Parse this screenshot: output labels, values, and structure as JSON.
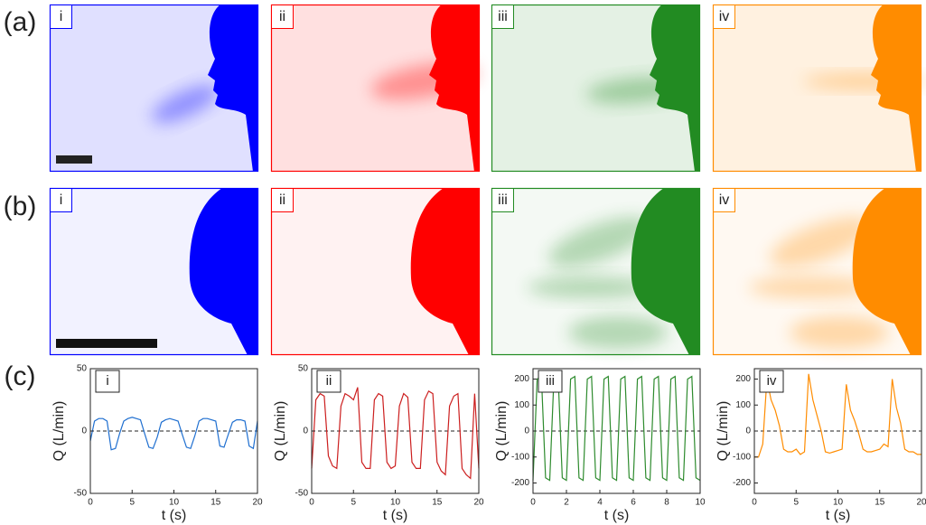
{
  "panel_labels": [
    "(a)",
    "(b)",
    "(c)"
  ],
  "row_a": [
    "i",
    "ii",
    "iii",
    "iv"
  ],
  "row_b": [
    "i",
    "ii",
    "iii",
    "iv"
  ],
  "chart_data": [
    {
      "type": "line",
      "label": "i",
      "color": "#1f6fd0",
      "xlabel": "t (s)",
      "ylabel": "Q (L/min)",
      "xlim": [
        0,
        20
      ],
      "ylim": [
        -50,
        50
      ],
      "xticks": [
        0,
        5,
        10,
        15,
        20
      ],
      "yticks": [
        -50,
        0,
        50
      ],
      "x": [
        0,
        0.5,
        1,
        1.5,
        2,
        2.5,
        3,
        3.5,
        4,
        4.5,
        5,
        5.5,
        6,
        6.5,
        7,
        7.5,
        8,
        8.5,
        9,
        9.5,
        10,
        10.5,
        11,
        11.5,
        12,
        12.5,
        13,
        13.5,
        14,
        14.5,
        15,
        15.5,
        16,
        16.5,
        17,
        17.5,
        18,
        18.5,
        19,
        19.5,
        20
      ],
      "values": [
        -8,
        8,
        10,
        10,
        8,
        -15,
        -14,
        -2,
        8,
        10,
        11,
        10,
        9,
        -2,
        -13,
        -14,
        -5,
        7,
        9,
        10,
        9,
        8,
        -3,
        -13,
        -14,
        -4,
        8,
        10,
        10,
        9,
        8,
        -12,
        -13,
        -3,
        7,
        9,
        9,
        8,
        -12,
        -14,
        8
      ]
    },
    {
      "type": "line",
      "label": "ii",
      "color": "#cc1f1f",
      "xlabel": "t (s)",
      "ylabel": "Q (L/min)",
      "xlim": [
        0,
        20
      ],
      "ylim": [
        -50,
        50
      ],
      "xticks": [
        0,
        5,
        10,
        15,
        20
      ],
      "yticks": [
        -50,
        0,
        50
      ],
      "x": [
        0,
        0.5,
        1,
        1.5,
        2,
        2.5,
        3,
        3.5,
        4,
        4.5,
        5,
        5.5,
        6,
        6.5,
        7,
        7.5,
        8,
        8.5,
        9,
        9.5,
        10,
        10.5,
        11,
        11.5,
        12,
        12.5,
        13,
        13.5,
        14,
        14.5,
        15,
        15.5,
        16,
        16.5,
        17,
        17.5,
        18,
        18.5,
        19,
        19.5,
        20
      ],
      "values": [
        -30,
        25,
        30,
        28,
        -20,
        -28,
        -30,
        20,
        30,
        28,
        25,
        35,
        -25,
        -30,
        -30,
        25,
        30,
        28,
        -25,
        -30,
        -28,
        20,
        30,
        27,
        -25,
        -30,
        -30,
        25,
        32,
        30,
        -25,
        -32,
        -35,
        20,
        28,
        30,
        -30,
        -35,
        -38,
        30,
        -30
      ]
    },
    {
      "type": "line",
      "label": "iii",
      "color": "#2e8b2e",
      "xlabel": "t (s)",
      "ylabel": "Q (L/min)",
      "xlim": [
        0,
        10
      ],
      "ylim": [
        -240,
        240
      ],
      "xticks": [
        0,
        2,
        4,
        6,
        8,
        10
      ],
      "yticks": [
        -200,
        -100,
        0,
        100,
        200
      ],
      "x": [
        0,
        0.25,
        0.5,
        0.75,
        1,
        1.25,
        1.5,
        1.75,
        2,
        2.25,
        2.5,
        2.75,
        3,
        3.25,
        3.5,
        3.75,
        4,
        4.25,
        4.5,
        4.75,
        5,
        5.25,
        5.5,
        5.75,
        6,
        6.25,
        6.5,
        6.75,
        7,
        7.25,
        7.5,
        7.75,
        8,
        8.25,
        8.5,
        8.75,
        9,
        9.25,
        9.5,
        9.75,
        10
      ],
      "values": [
        -190,
        200,
        210,
        -180,
        -190,
        200,
        210,
        -180,
        -190,
        200,
        210,
        -180,
        -190,
        200,
        210,
        -180,
        -190,
        200,
        210,
        -180,
        -190,
        200,
        210,
        -180,
        -190,
        200,
        210,
        -180,
        -190,
        200,
        210,
        -180,
        -190,
        200,
        210,
        -180,
        -190,
        200,
        210,
        -180,
        -190
      ]
    },
    {
      "type": "line",
      "label": "iv",
      "color": "#ff8c00",
      "xlabel": "t (s)",
      "ylabel": "Q (L/min)",
      "xlim": [
        0,
        20
      ],
      "ylim": [
        -240,
        240
      ],
      "xticks": [
        0,
        5,
        10,
        15,
        20
      ],
      "yticks": [
        -200,
        -100,
        0,
        100,
        200
      ],
      "x": [
        0,
        0.5,
        1,
        1.5,
        2,
        2.5,
        3,
        3.5,
        4,
        4.5,
        5,
        5.5,
        6,
        6.5,
        7,
        7.5,
        8,
        8.5,
        9,
        9.5,
        10,
        10.5,
        11,
        11.5,
        12,
        12.5,
        13,
        13.5,
        14,
        14.5,
        15,
        15.5,
        16,
        16.5,
        17,
        17.5,
        18,
        18.5,
        19,
        19.5,
        20
      ],
      "values": [
        -100,
        -100,
        -50,
        200,
        120,
        80,
        20,
        -70,
        -80,
        -80,
        -70,
        -90,
        -80,
        220,
        120,
        60,
        0,
        -80,
        -85,
        -80,
        -75,
        -70,
        180,
        80,
        40,
        -10,
        -70,
        -80,
        -80,
        -75,
        -70,
        -50,
        -60,
        200,
        90,
        30,
        -70,
        -80,
        -80,
        -90,
        -90
      ]
    }
  ]
}
